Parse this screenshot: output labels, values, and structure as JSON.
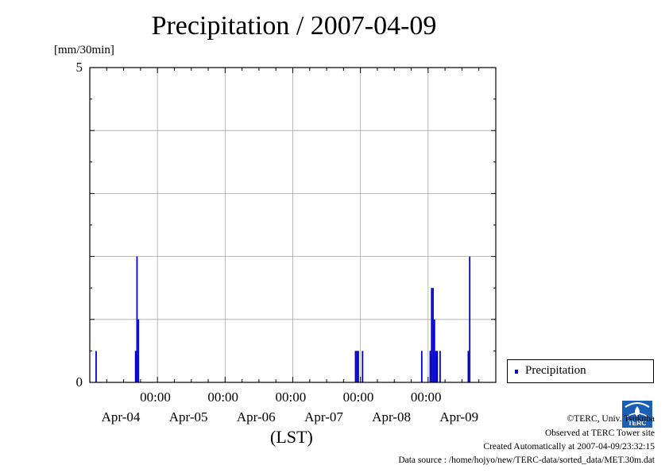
{
  "chart_data": {
    "type": "bar",
    "title": "Precipitation / 2007-04-09",
    "ylabel": "[mm/30min]",
    "xlabel": "(LST)",
    "ylim": [
      0,
      5
    ],
    "yticks": [
      "0",
      "5"
    ],
    "xlim_days": [
      3.0,
      9.0
    ],
    "xtick_time_labels": [
      "00:00",
      "00:00",
      "00:00",
      "00:00",
      "00:00"
    ],
    "xtick_date_labels": [
      "Apr-04",
      "Apr-05",
      "Apr-06",
      "Apr-07",
      "Apr-08",
      "Apr-09"
    ],
    "grid": true,
    "legend_position": "right",
    "series": [
      {
        "name": "Precipitation",
        "color": "#0000cc",
        "points": [
          {
            "t": "2007-04-03 02:00",
            "value": 0.5
          },
          {
            "t": "2007-04-03 16:00",
            "value": 0.5
          },
          {
            "t": "2007-04-03 16:30",
            "value": 2.0
          },
          {
            "t": "2007-04-03 17:00",
            "value": 1.0
          },
          {
            "t": "2007-04-06 22:00",
            "value": 0.5
          },
          {
            "t": "2007-04-06 22:30",
            "value": 0.5
          },
          {
            "t": "2007-04-06 23:00",
            "value": 0.5
          },
          {
            "t": "2007-04-07 00:30",
            "value": 0.5
          },
          {
            "t": "2007-04-07 21:30",
            "value": 0.5
          },
          {
            "t": "2007-04-08 00:30",
            "value": 0.5
          },
          {
            "t": "2007-04-08 01:00",
            "value": 1.5
          },
          {
            "t": "2007-04-08 01:30",
            "value": 1.5
          },
          {
            "t": "2007-04-08 02:00",
            "value": 1.0
          },
          {
            "t": "2007-04-08 02:30",
            "value": 0.5
          },
          {
            "t": "2007-04-08 03:00",
            "value": 0.5
          },
          {
            "t": "2007-04-08 04:00",
            "value": 0.5
          },
          {
            "t": "2007-04-08 14:00",
            "value": 0.5
          },
          {
            "t": "2007-04-08 14:30",
            "value": 2.0
          }
        ]
      }
    ]
  },
  "legend": {
    "label": "Precipitation"
  },
  "credits": {
    "line1": "©TERC, Univ. Tsukuba",
    "line2": "Observed at TERC Tower site",
    "line3": "Created Automatically at 2007-04-09/23:32:15",
    "line4": "Data source : /home/hojyo/new/TERC-data/sorted_data/MET.30m.dat"
  },
  "logo_text": "TERC"
}
